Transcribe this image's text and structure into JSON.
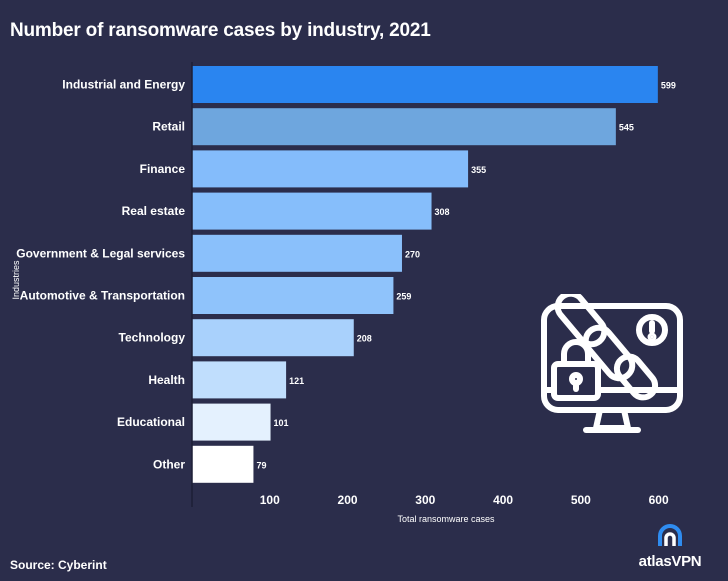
{
  "title": "Number of ransomware cases by industry, 2021",
  "source": "Source: Cyberint",
  "brand": {
    "name": "atlasVPN"
  },
  "illustration_icon": "broken-chain-lock-monitor-icon",
  "colors": {
    "background": "#2b2d4b",
    "axis": "#1d1f36",
    "text": "#ffffff",
    "brand_accent": "#2f8cf0"
  },
  "chart_data": {
    "type": "bar",
    "orientation": "horizontal",
    "categories": [
      "Industrial and Energy",
      "Retail",
      "Finance",
      "Real estate",
      "Government & Legal services",
      "Automotive & Transportation",
      "Technology",
      "Health",
      "Educational",
      "Other"
    ],
    "values": [
      599,
      545,
      355,
      308,
      270,
      259,
      208,
      121,
      101,
      79
    ],
    "colors": [
      "#2a85f0",
      "#6ea6de",
      "#84bcfb",
      "#86befb",
      "#8ac0fb",
      "#8fc3fb",
      "#a9d1fc",
      "#c0defd",
      "#e4f1fe",
      "#ffffff"
    ],
    "xlabel": "Total ransomware cases",
    "ylabel": "Industries",
    "xticks": [
      100,
      200,
      300,
      400,
      500,
      600
    ],
    "xlim": [
      0,
      640
    ],
    "grid": false,
    "legend": "none"
  }
}
